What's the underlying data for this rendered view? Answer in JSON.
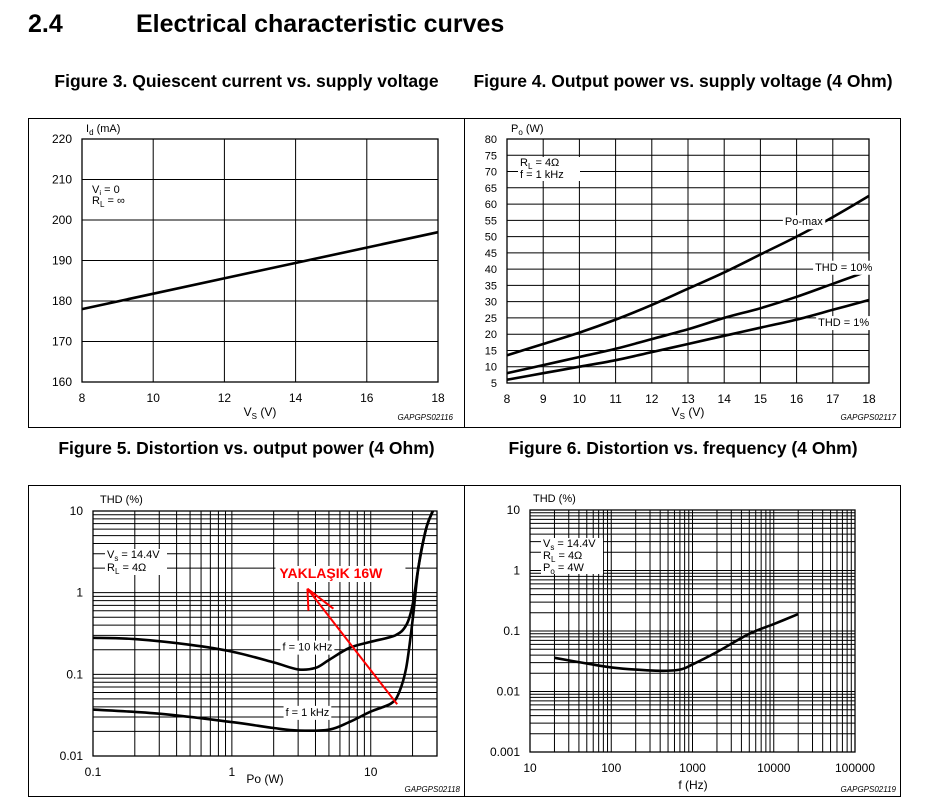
{
  "header": {
    "section_number": "2.4",
    "title": "Electrical characteristic curves"
  },
  "chart_data": [
    {
      "id": "fig3",
      "type": "line",
      "title": "Figure 3. Quiescent current vs. supply voltage",
      "xlabel": "V_S (V)",
      "ylabel": "I_d (mA)",
      "xlim": [
        8,
        18
      ],
      "ylim": [
        160,
        220
      ],
      "xscale": "linear",
      "yscale": "linear",
      "x_ticks": [
        8,
        10,
        12,
        14,
        16,
        18
      ],
      "x_tick_labels": [
        "8",
        "10",
        "12",
        "14",
        "16",
        "18"
      ],
      "y_ticks": [
        160,
        170,
        180,
        190,
        200,
        210,
        220
      ],
      "y_tick_labels": [
        "160",
        "170",
        "180",
        "190",
        "200",
        "210",
        "220"
      ],
      "grid": true,
      "annotations": [
        "V_i = 0",
        "R_L = ∞"
      ],
      "code": "GAPGPS02116",
      "series": [
        {
          "name": "",
          "x": [
            8,
            18
          ],
          "y": [
            178,
            197
          ]
        }
      ]
    },
    {
      "id": "fig4",
      "type": "line",
      "title": "Figure 4. Output power vs. supply voltage (4 Ohm)",
      "xlabel": "V_S (V)",
      "ylabel": "P_o (W)",
      "xlim": [
        8,
        18
      ],
      "ylim": [
        5,
        80
      ],
      "xscale": "linear",
      "yscale": "linear",
      "x_ticks": [
        8,
        9,
        10,
        11,
        12,
        13,
        14,
        15,
        16,
        17,
        18
      ],
      "x_tick_labels": [
        "8",
        "9",
        "10",
        "11",
        "12",
        "13",
        "14",
        "15",
        "16",
        "17",
        "18"
      ],
      "y_ticks": [
        5,
        10,
        15,
        20,
        25,
        30,
        35,
        40,
        45,
        50,
        55,
        60,
        65,
        70,
        75,
        80
      ],
      "y_tick_labels": [
        "5",
        "10",
        "15",
        "20",
        "25",
        "30",
        "35",
        "40",
        "45",
        "50",
        "55",
        "60",
        "65",
        "70",
        "75",
        "80"
      ],
      "grid": true,
      "annotations": [
        "R_L = 4Ω",
        "f = 1 kHz"
      ],
      "code": "GAPGPS02117",
      "series": [
        {
          "name": "Po-max",
          "x": [
            8,
            9,
            10,
            11,
            12,
            13,
            14,
            15,
            16,
            17,
            18
          ],
          "y": [
            13.5,
            17,
            20.5,
            24.5,
            29,
            34,
            39,
            44.5,
            50,
            56,
            62.5
          ]
        },
        {
          "name": "THD = 10%",
          "x": [
            8,
            9,
            10,
            11,
            12,
            13,
            14,
            15,
            16,
            17,
            18
          ],
          "y": [
            8,
            10.5,
            13,
            15.5,
            18.5,
            21.5,
            25,
            28,
            31.5,
            35.5,
            39.5
          ]
        },
        {
          "name": "THD = 1%",
          "x": [
            8,
            9,
            10,
            11,
            12,
            13,
            14,
            15,
            16,
            17,
            18
          ],
          "y": [
            6,
            8,
            10,
            12,
            14.5,
            17,
            19.5,
            22,
            24.5,
            27.5,
            30.5
          ]
        }
      ]
    },
    {
      "id": "fig5",
      "type": "line",
      "title": "Figure 5. Distortion vs. output power (4 Ohm)",
      "xlabel": "Po (W)",
      "ylabel": "THD (%)",
      "xlim": [
        0.1,
        30
      ],
      "ylim": [
        0.01,
        10
      ],
      "xscale": "log",
      "yscale": "log",
      "x_ticks": [
        0.1,
        1,
        10
      ],
      "x_tick_labels": [
        "0.1",
        "1",
        "10"
      ],
      "y_ticks": [
        0.01,
        0.1,
        1,
        10
      ],
      "y_tick_labels": [
        "0.01",
        "0.1",
        "1",
        "10"
      ],
      "grid": true,
      "annotations": [
        "V_s = 14.4V",
        "R_L = 4Ω"
      ],
      "overlay": {
        "text": "YAKLAŞIK 16W",
        "color": "#ff0000",
        "arrow_from": [
          15.5,
          0.043
        ],
        "arrow_to": [
          3.5,
          1.12
        ]
      },
      "code": "GAPGPS02118",
      "series": [
        {
          "name": "f = 10 kHz",
          "x": [
            0.1,
            0.2,
            0.5,
            1,
            2,
            3,
            4,
            5,
            7,
            10,
            15,
            18,
            20,
            22,
            25,
            28
          ],
          "y": [
            0.28,
            0.27,
            0.23,
            0.19,
            0.14,
            0.115,
            0.12,
            0.15,
            0.21,
            0.25,
            0.3,
            0.4,
            0.7,
            2,
            6,
            10
          ]
        },
        {
          "name": "f = 1 kHz",
          "x": [
            0.1,
            0.3,
            1,
            2,
            3,
            5,
            7,
            10,
            14,
            16,
            18,
            20,
            22,
            25,
            28
          ],
          "y": [
            0.037,
            0.033,
            0.026,
            0.022,
            0.0205,
            0.021,
            0.026,
            0.035,
            0.044,
            0.06,
            0.12,
            0.45,
            2,
            6,
            10
          ]
        }
      ]
    },
    {
      "id": "fig6",
      "type": "line",
      "title": "Figure 6. Distortion vs. frequency (4 Ohm)",
      "xlabel": "f (Hz)",
      "ylabel": "THD (%)",
      "xlim": [
        10,
        100000
      ],
      "ylim": [
        0.001,
        10
      ],
      "xscale": "log",
      "yscale": "log",
      "x_ticks": [
        10,
        100,
        1000,
        10000,
        100000
      ],
      "x_tick_labels": [
        "10",
        "100",
        "1000",
        "10000",
        "100000"
      ],
      "y_ticks": [
        0.001,
        0.01,
        0.1,
        1,
        10
      ],
      "y_tick_labels": [
        "0.001",
        "0.01",
        "0.1",
        "1",
        "10"
      ],
      "grid": true,
      "annotations": [
        "V_s = 14.4V",
        "R_L = 4Ω",
        "P_o = 4W"
      ],
      "code": "GAPGPS02119",
      "series": [
        {
          "name": "",
          "x": [
            20,
            50,
            100,
            200,
            400,
            700,
            1000,
            2000,
            5000,
            10000,
            20000
          ],
          "y": [
            0.036,
            0.029,
            0.025,
            0.023,
            0.022,
            0.023,
            0.028,
            0.045,
            0.09,
            0.13,
            0.19
          ]
        }
      ]
    }
  ]
}
